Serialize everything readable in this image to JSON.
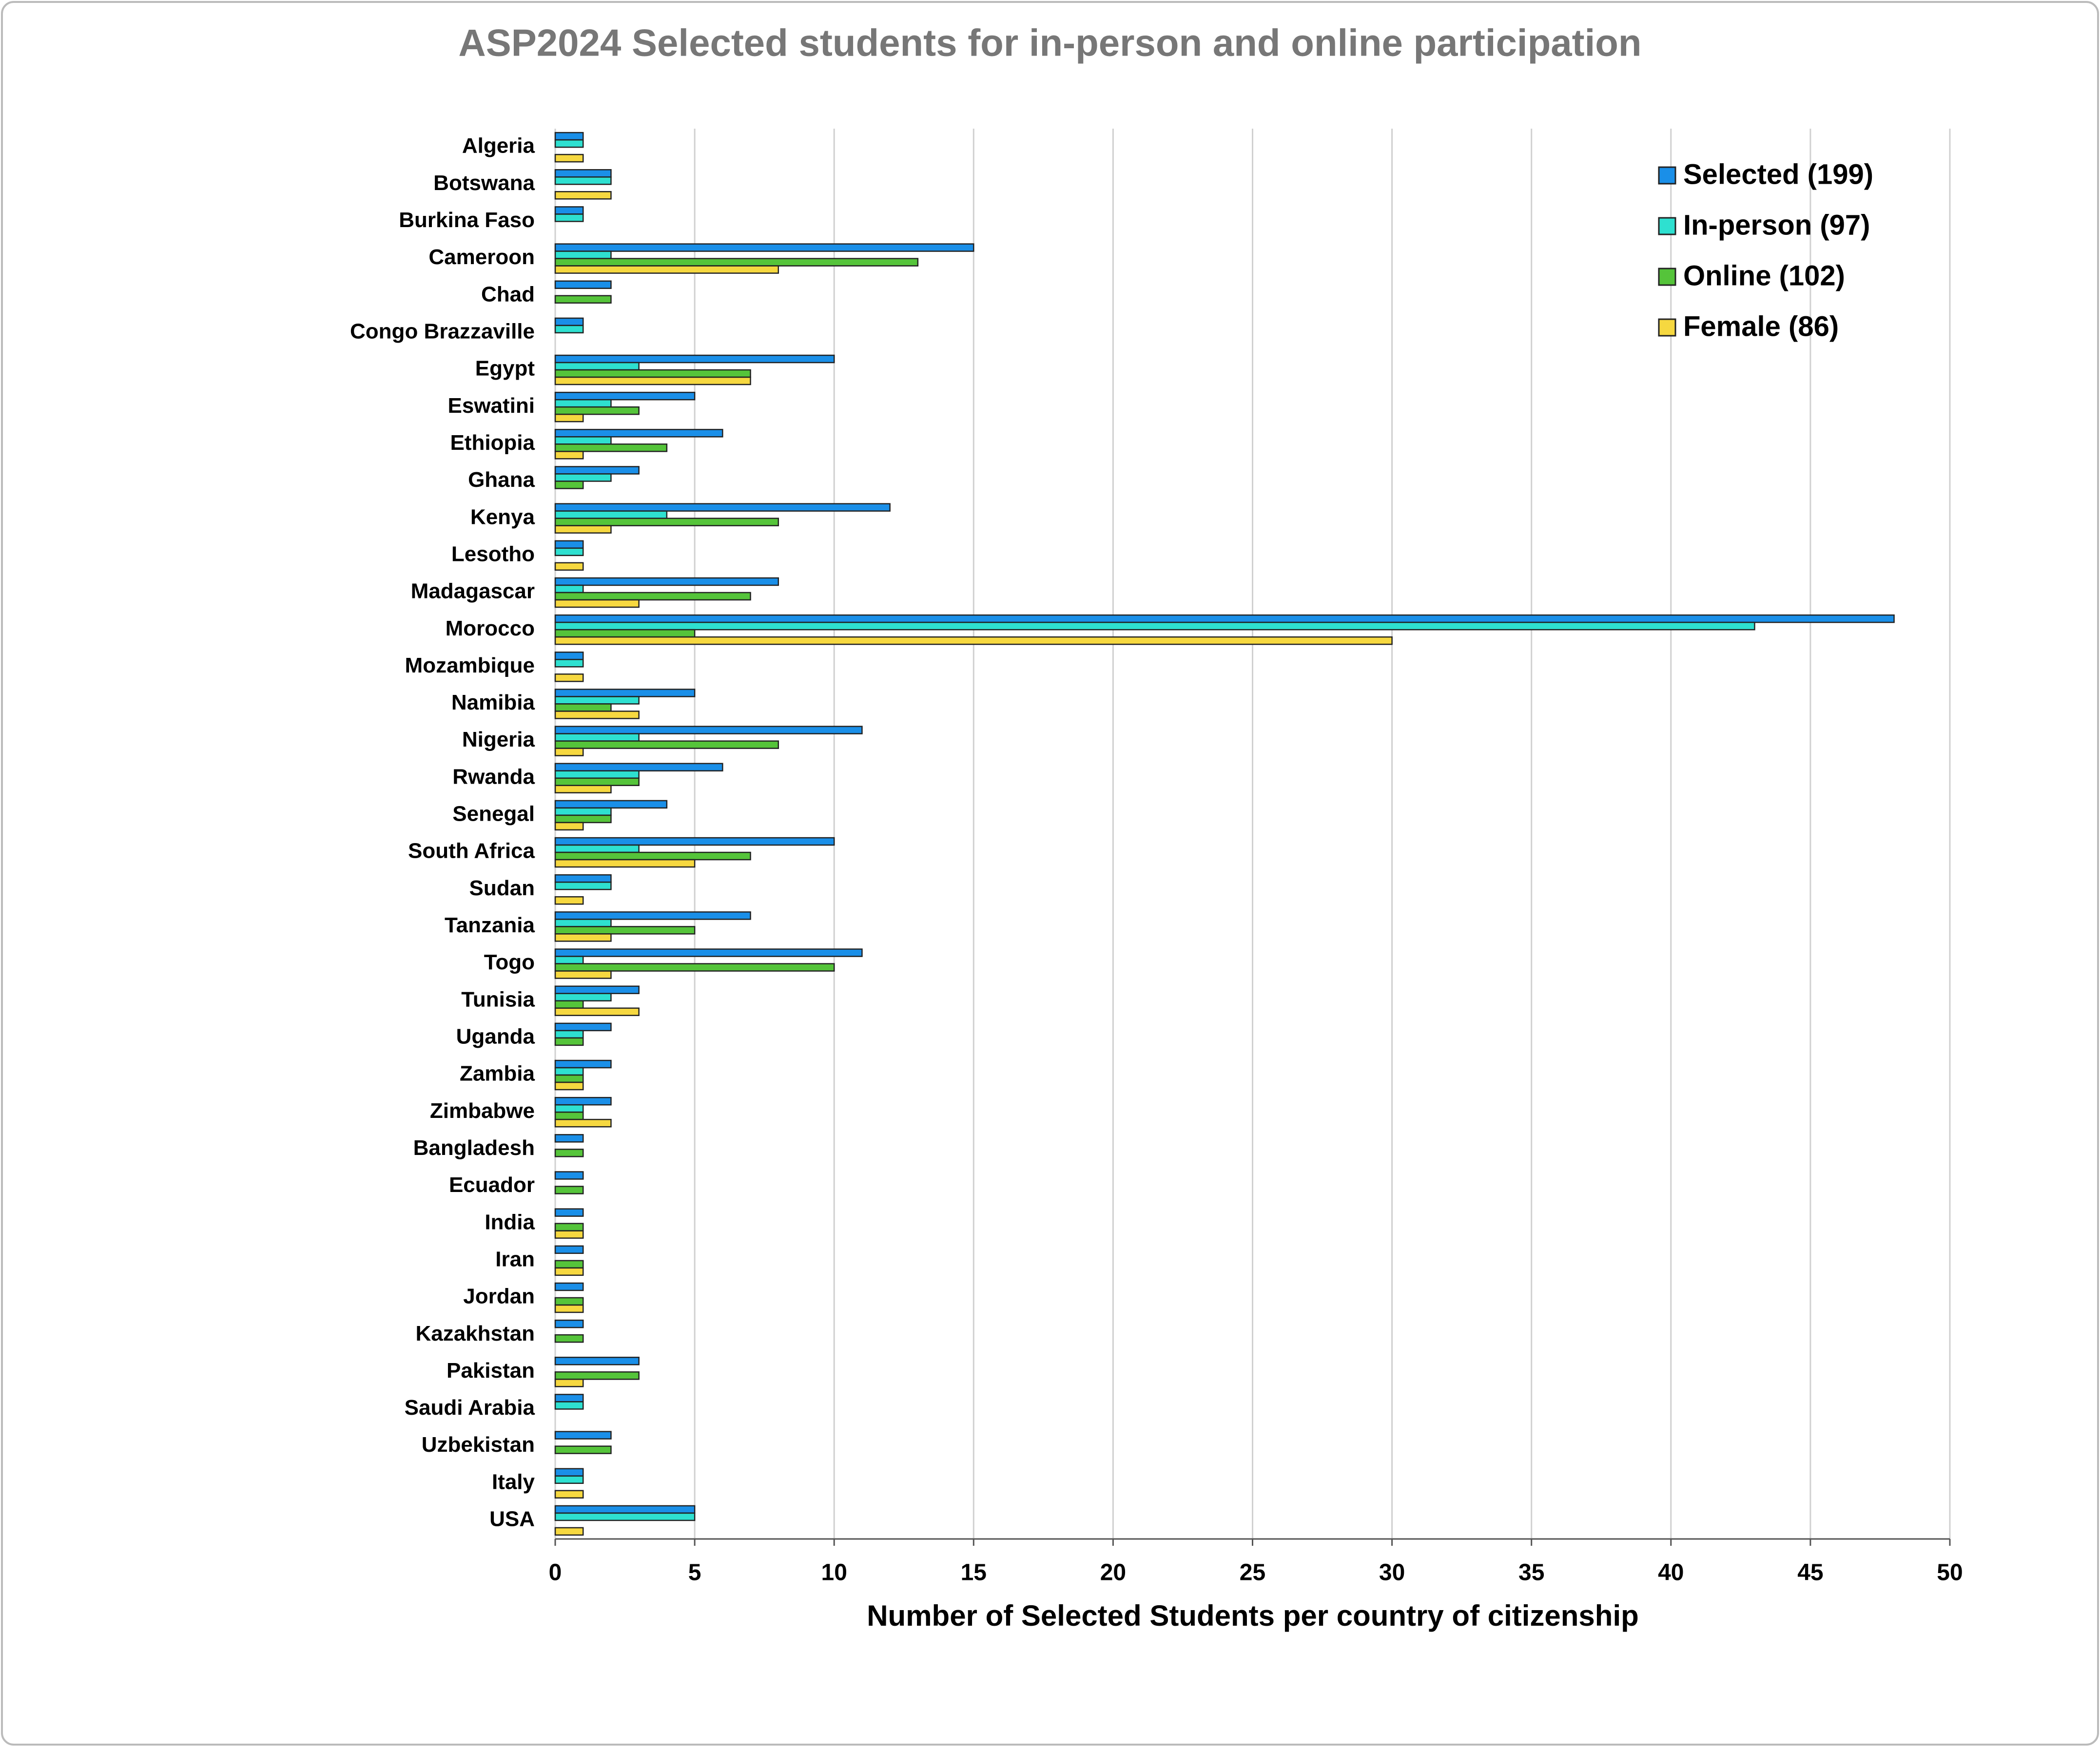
{
  "chart_data": {
    "type": "hbar",
    "title": "ASP2024 Selected students for in-person and online participation",
    "x_label": "Number of Selected Students per country of citizenship",
    "categories": [
      "Algeria",
      "Botswana",
      "Burkina Faso",
      "Cameroon",
      "Chad",
      "Congo Brazzaville",
      "Egypt",
      "Eswatini",
      "Ethiopia",
      "Ghana",
      "Kenya",
      "Lesotho",
      "Madagascar",
      "Morocco",
      "Mozambique",
      "Namibia",
      "Nigeria",
      "Rwanda",
      "Senegal",
      "South Africa",
      "Sudan",
      "Tanzania",
      "Togo",
      "Tunisia",
      "Uganda",
      "Zambia",
      "Zimbabwe",
      "Bangladesh",
      "Ecuador",
      "India",
      "Iran",
      "Jordan",
      "Kazakhstan",
      "Pakistan",
      "Saudi Arabia",
      "Uzbekistan",
      "Italy",
      "USA"
    ],
    "series": [
      {
        "name": "Selected (199)",
        "color": "#1a8fe8",
        "values": [
          1,
          2,
          1,
          15,
          2,
          1,
          10,
          5,
          6,
          3,
          12,
          1,
          8,
          48,
          1,
          5,
          11,
          6,
          4,
          10,
          2,
          7,
          11,
          3,
          2,
          2,
          2,
          1,
          1,
          1,
          1,
          1,
          1,
          3,
          1,
          2,
          1,
          5
        ]
      },
      {
        "name": "In-person (97)",
        "color": "#2ee0d0",
        "values": [
          1,
          2,
          1,
          2,
          0,
          1,
          3,
          2,
          2,
          2,
          4,
          1,
          1,
          43,
          1,
          3,
          3,
          3,
          2,
          3,
          2,
          2,
          1,
          2,
          1,
          1,
          1,
          0,
          0,
          0,
          0,
          0,
          0,
          0,
          1,
          0,
          1,
          5
        ]
      },
      {
        "name": "Online (102)",
        "color": "#55c43a",
        "values": [
          0,
          0,
          0,
          13,
          2,
          0,
          7,
          3,
          4,
          1,
          8,
          0,
          7,
          5,
          0,
          2,
          8,
          3,
          2,
          7,
          0,
          5,
          10,
          1,
          1,
          1,
          1,
          1,
          1,
          1,
          1,
          1,
          1,
          3,
          0,
          2,
          0,
          0
        ]
      },
      {
        "name": "Female (86)",
        "color": "#f6d840",
        "values": [
          1,
          2,
          0,
          8,
          0,
          0,
          7,
          1,
          1,
          0,
          2,
          1,
          3,
          30,
          1,
          3,
          1,
          2,
          1,
          5,
          1,
          2,
          2,
          3,
          0,
          1,
          2,
          0,
          0,
          1,
          1,
          1,
          0,
          1,
          0,
          0,
          1,
          1
        ]
      }
    ],
    "xlim": [
      0,
      50
    ],
    "xticks": [
      0,
      5,
      10,
      15,
      20,
      25,
      30,
      35,
      40,
      45,
      50
    ],
    "grid": true,
    "legend": "top-right"
  }
}
